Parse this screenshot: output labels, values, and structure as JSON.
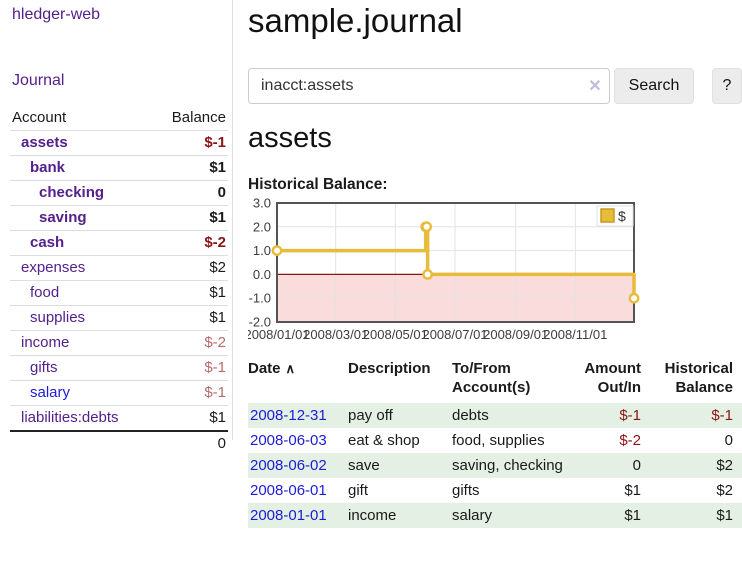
{
  "sidebar": {
    "brand": "hledger-web",
    "journal_label": "Journal",
    "table": {
      "headers": [
        "Account",
        "Balance"
      ],
      "rows": [
        {
          "account": "assets",
          "indent": 1,
          "emph": true,
          "balance": "$-1",
          "balance_style": "neg"
        },
        {
          "account": "bank",
          "indent": 2,
          "emph": true,
          "balance": "$1",
          "balance_style": ""
        },
        {
          "account": "checking",
          "indent": 3,
          "emph": true,
          "balance": "0",
          "balance_style": ""
        },
        {
          "account": "saving",
          "indent": 3,
          "emph": true,
          "balance": "$1",
          "balance_style": ""
        },
        {
          "account": "cash",
          "indent": 2,
          "emph": true,
          "balance": "$-2",
          "balance_style": "neg"
        },
        {
          "account": "expenses",
          "indent": 1,
          "emph": false,
          "balance": "$2",
          "balance_style": ""
        },
        {
          "account": "food",
          "indent": 2,
          "emph": false,
          "balance": "$1",
          "balance_style": ""
        },
        {
          "account": "supplies",
          "indent": 2,
          "emph": false,
          "balance": "$1",
          "balance_style": ""
        },
        {
          "account": "income",
          "indent": 1,
          "emph": false,
          "balance": "$-2",
          "balance_style": "rose"
        },
        {
          "account": "gifts",
          "indent": 2,
          "emph": false,
          "balance": "$-1",
          "balance_style": "rose"
        },
        {
          "account": "salary",
          "indent": 2,
          "emph": false,
          "link_style": "unvisited",
          "balance": "$-1",
          "balance_style": "rose"
        },
        {
          "account": "liabilities:debts",
          "indent": 1,
          "emph": false,
          "balance": "$1",
          "balance_style": ""
        }
      ],
      "total": "0"
    }
  },
  "main": {
    "title": "sample.journal",
    "search": {
      "value": "inacct:assets",
      "clear_icon": "✕",
      "button_label": "Search",
      "help_label": "?"
    },
    "heading": "assets",
    "chart_label": "Historical Balance:",
    "register": {
      "sort_indicator": "∧",
      "headers": [
        {
          "line1": "Date",
          "line2": "",
          "align": "left",
          "sortable": true
        },
        {
          "line1": "Description",
          "line2": "",
          "align": "left"
        },
        {
          "line1": "To/From",
          "line2": "Account(s)",
          "align": "left"
        },
        {
          "line1": "Amount",
          "line2": "Out/In",
          "align": "right"
        },
        {
          "line1": "Historical",
          "line2": "Balance",
          "align": "right"
        }
      ],
      "rows": [
        {
          "date": "2008-12-31",
          "description": "pay off",
          "accounts": "debts",
          "amount": "$-1",
          "amount_style": "neg",
          "balance": "$-1",
          "balance_style": "neg",
          "shaded": true
        },
        {
          "date": "2008-06-03",
          "description": "eat & shop",
          "accounts": "food, supplies",
          "amount": "$-2",
          "amount_style": "neg",
          "balance": "0",
          "balance_style": "",
          "shaded": false
        },
        {
          "date": "2008-06-02",
          "description": "save",
          "accounts": "saving, checking",
          "amount": "0",
          "amount_style": "",
          "balance": "$2",
          "balance_style": "",
          "shaded": true
        },
        {
          "date": "2008-06-01",
          "description": "gift",
          "accounts": "gifts",
          "amount": "$1",
          "amount_style": "",
          "balance": "$2",
          "balance_style": "",
          "shaded": false
        },
        {
          "date": "2008-01-01",
          "description": "income",
          "accounts": "salary",
          "amount": "$1",
          "amount_style": "",
          "balance": "$1",
          "balance_style": "",
          "shaded": true
        }
      ]
    }
  },
  "chart_data": {
    "type": "line",
    "subtype": "step-with-markers",
    "title": "Historical Balance of assets",
    "legend": [
      {
        "label": "$",
        "color": "#e8bb3a"
      }
    ],
    "legend_position": "top-right",
    "ylim": [
      -2,
      3
    ],
    "y_ticks": [
      "3.0",
      "2.0",
      "1.0",
      "0.0",
      "-1.0",
      "-2.0"
    ],
    "y_tick_values": [
      3,
      2,
      1,
      0,
      -1,
      -2
    ],
    "x_ticks": [
      "2008/01/01",
      "2008/03/01",
      "2008/05/01",
      "2008/07/01",
      "2008/09/01",
      "2008/11/01"
    ],
    "x_tick_days": [
      0,
      60,
      121,
      182,
      244,
      305
    ],
    "x_range_days": [
      0,
      365
    ],
    "grid": true,
    "negative_region_fill": "#fadcdc",
    "zero_line_color": "#8c1717",
    "series": [
      {
        "name": "$",
        "color": "#e8bb3a",
        "marker": "open-circle",
        "points": [
          {
            "date": "2008-01-01",
            "day": 0,
            "value": 1
          },
          {
            "date": "2008-06-01",
            "day": 152,
            "value": 2
          },
          {
            "date": "2008-06-02",
            "day": 153,
            "value": 2
          },
          {
            "date": "2008-06-03",
            "day": 154,
            "value": 0
          },
          {
            "date": "2008-12-31",
            "day": 365,
            "value": -1
          }
        ]
      }
    ]
  }
}
